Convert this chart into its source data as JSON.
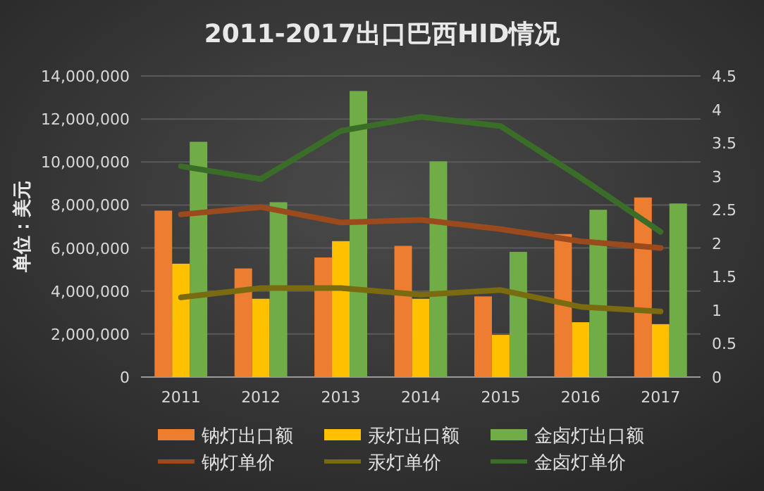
{
  "chart_data": {
    "type": "bar",
    "title": "2011-2017出口巴西HID情况",
    "ylabel": "单位：美元",
    "categories": [
      "2011",
      "2012",
      "2013",
      "2014",
      "2015",
      "2016",
      "2017"
    ],
    "series": [
      {
        "name": "钠灯出口额",
        "color": "#ed7d31",
        "values": [
          7740000,
          5050000,
          5560000,
          6100000,
          3750000,
          6650000,
          8350000
        ]
      },
      {
        "name": "汞灯出口额",
        "color": "#ffc000",
        "values": [
          5270000,
          3640000,
          6320000,
          3640000,
          1960000,
          2550000,
          2460000
        ]
      },
      {
        "name": "金卤灯出口额",
        "color": "#70ad47",
        "values": [
          10940000,
          8130000,
          13300000,
          10030000,
          5820000,
          7780000,
          8070000
        ]
      },
      {
        "name": "钠灯单价",
        "type": "line",
        "axis": "y2",
        "color": "#9a4a1c",
        "values": [
          2.43,
          2.54,
          2.31,
          2.35,
          2.21,
          2.03,
          1.93
        ]
      },
      {
        "name": "汞灯单价",
        "type": "line",
        "axis": "y2",
        "color": "#7a6a10",
        "values": [
          1.19,
          1.33,
          1.33,
          1.23,
          1.3,
          1.05,
          0.98
        ]
      },
      {
        "name": "金卤灯单价",
        "type": "line",
        "axis": "y2",
        "color": "#3a6e28",
        "values": [
          3.15,
          2.96,
          3.68,
          3.89,
          3.75,
          2.98,
          2.17
        ]
      }
    ],
    "ylim": [
      0,
      14000000
    ],
    "yticks": [
      {
        "value": 0,
        "label": "0"
      },
      {
        "value": 2000000,
        "label": "2,000,000"
      },
      {
        "value": 4000000,
        "label": "4,000,000"
      },
      {
        "value": 6000000,
        "label": "6,000,000"
      },
      {
        "value": 8000000,
        "label": "8,000,000"
      },
      {
        "value": 10000000,
        "label": "10,000,000"
      },
      {
        "value": 12000000,
        "label": "12,000,000"
      },
      {
        "value": 14000000,
        "label": "14,000,000"
      }
    ],
    "y2lim": [
      0,
      4.5
    ],
    "y2ticks": [
      0,
      0.5,
      1,
      1.5,
      2,
      2.5,
      3,
      3.5,
      4,
      4.5
    ],
    "grid": "y",
    "legend": "bottom"
  }
}
